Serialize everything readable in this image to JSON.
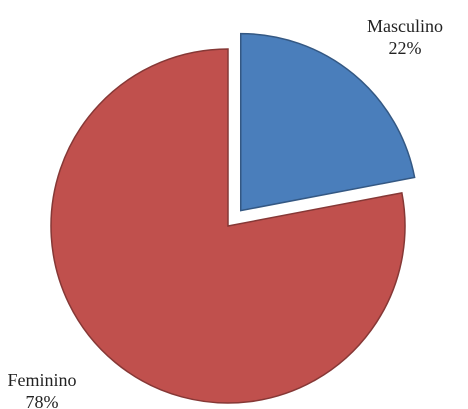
{
  "chart_data": {
    "type": "pie",
    "categories": [
      "Masculino",
      "Feminino"
    ],
    "values": [
      22,
      78
    ],
    "value_labels": [
      "22%",
      "78%"
    ],
    "colors": [
      "#4a7ebb",
      "#c0504d"
    ]
  }
}
